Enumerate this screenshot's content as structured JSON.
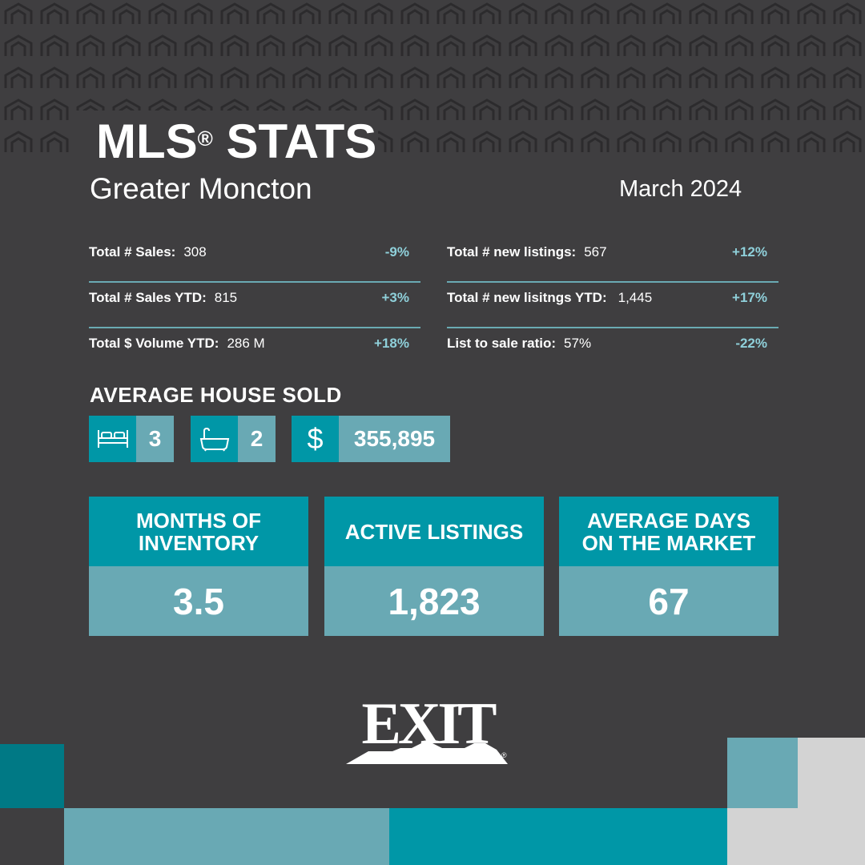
{
  "header": {
    "title": "MLS",
    "title_reg": "®",
    "title_rest": " STATS",
    "region": "Greater Moncton",
    "period": "March 2024"
  },
  "stats": {
    "left": [
      {
        "label": "Total # Sales:",
        "value": "308",
        "change": "-9%"
      },
      {
        "label": "Total # Sales YTD:",
        "value": "815",
        "change": "+3%"
      },
      {
        "label": "Total $ Volume YTD:",
        "value": "286 M",
        "change": "+18%"
      }
    ],
    "right": [
      {
        "label": "Total # new listings:",
        "value": "567",
        "change": "+12%"
      },
      {
        "label": "Total # new lisitngs YTD:",
        "value": "1,445",
        "change": "+17%"
      },
      {
        "label": "List to sale ratio:",
        "value": "57%",
        "change": "-22%"
      }
    ]
  },
  "average_house": {
    "title": "AVERAGE HOUSE SOLD",
    "bedrooms": "3",
    "bathrooms": "2",
    "currency_symbol": "$",
    "price": "355,895"
  },
  "cards": [
    {
      "label_line1": "MONTHS OF",
      "label_line2": "INVENTORY",
      "value": "3.5"
    },
    {
      "label_line1": "ACTIVE LISTINGS",
      "label_line2": "",
      "value": "1,823"
    },
    {
      "label_line1": "AVERAGE DAYS",
      "label_line2": "ON THE MARKET",
      "value": "67"
    }
  ],
  "logo": {
    "text": "EXIT",
    "mark": "®"
  },
  "colors": {
    "background": "#3f3e40",
    "teal": "#0097a7",
    "light_teal": "#69a9b4",
    "change_text": "#8fd0da",
    "gray_block": "#d3d3d3"
  }
}
